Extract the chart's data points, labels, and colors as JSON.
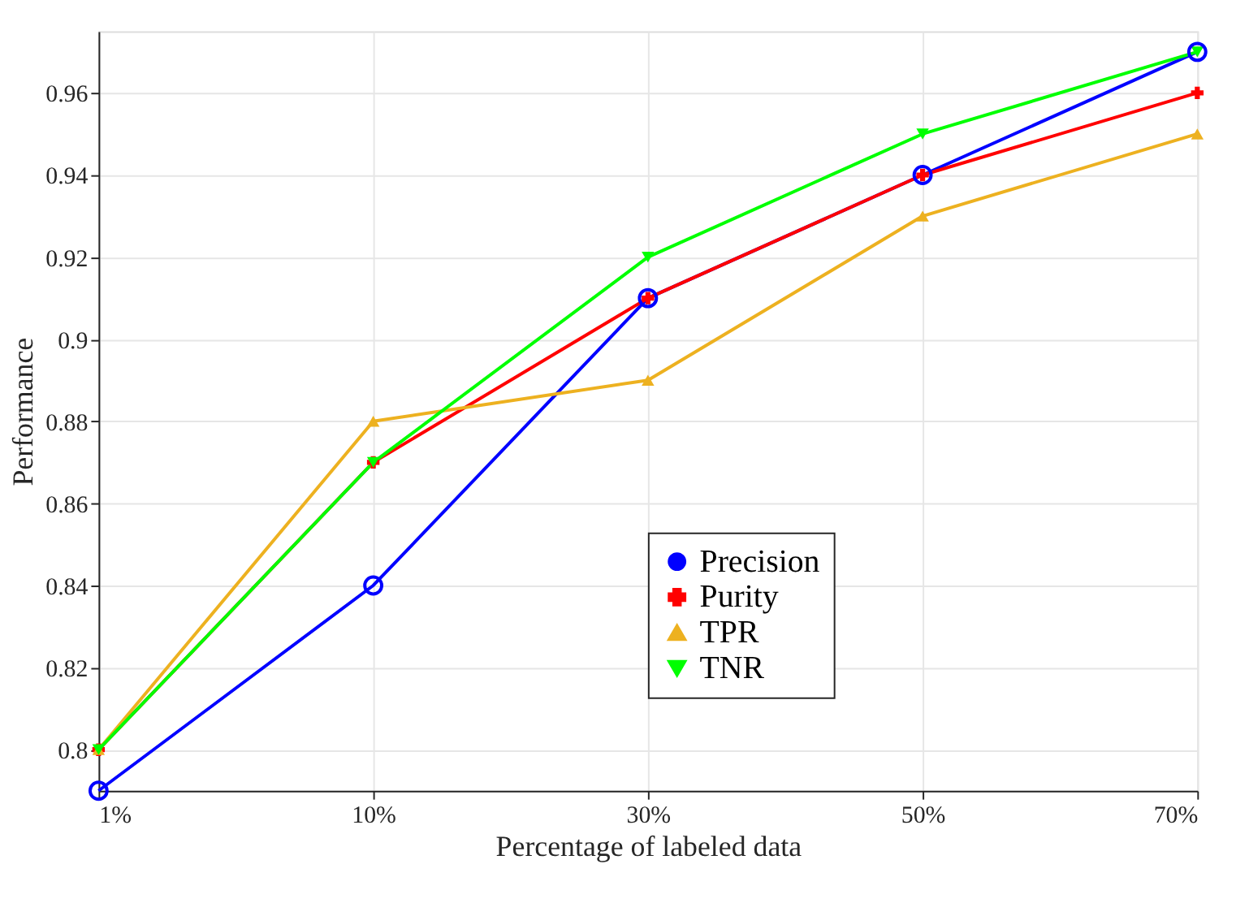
{
  "chart_data": {
    "type": "line",
    "xlabel": "Percentage of labeled data",
    "ylabel": "Performance",
    "categories": [
      "1%",
      "10%",
      "30%",
      "50%",
      "70%"
    ],
    "series": [
      {
        "name": "Precision",
        "color": "#0000ff",
        "marker": "circle",
        "values": [
          0.79,
          0.84,
          0.91,
          0.94,
          0.97
        ]
      },
      {
        "name": "Purity",
        "color": "#ff0000",
        "marker": "cross",
        "values": [
          0.8,
          0.87,
          0.91,
          0.94,
          0.96
        ]
      },
      {
        "name": "TPR",
        "color": "#edb120",
        "marker": "triangle",
        "values": [
          0.8,
          0.88,
          0.89,
          0.93,
          0.95
        ]
      },
      {
        "name": "TNR",
        "color": "#00ff00",
        "marker": "triangle-down",
        "values": [
          0.8,
          0.87,
          0.92,
          0.95,
          0.97
        ]
      }
    ],
    "ylim": [
      0.79,
      0.975
    ],
    "yticks": [
      0.8,
      0.82,
      0.84,
      0.86,
      0.88,
      0.9,
      0.92,
      0.94,
      0.96
    ],
    "grid": true,
    "legend": "bottom right",
    "line_style": "solid"
  }
}
